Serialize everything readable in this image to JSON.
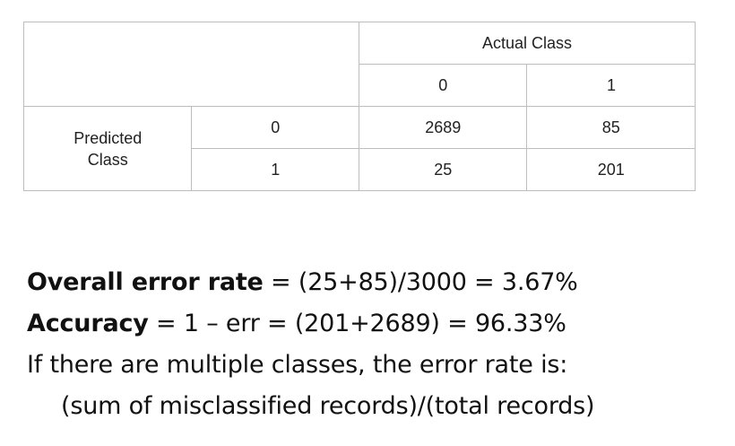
{
  "table": {
    "header": "Actual Class",
    "actual_values": [
      "0",
      "1"
    ],
    "row_header": "Predicted\nClass",
    "rows": [
      {
        "predicted": "0",
        "cells": [
          "2689",
          "85"
        ]
      },
      {
        "predicted": "1",
        "cells": [
          "25",
          "201"
        ]
      }
    ]
  },
  "metrics": {
    "error_label": "Overall error rate",
    "error_formula": " = (25+85)/3000 = 3.67%",
    "accuracy_label": "Accuracy",
    "accuracy_formula": " = 1 – err = (201+2689) = 96.33%",
    "multiclass_note": "If there are multiple classes, the error rate is:",
    "multiclass_formula": "(sum of misclassified records)/(total records)"
  }
}
